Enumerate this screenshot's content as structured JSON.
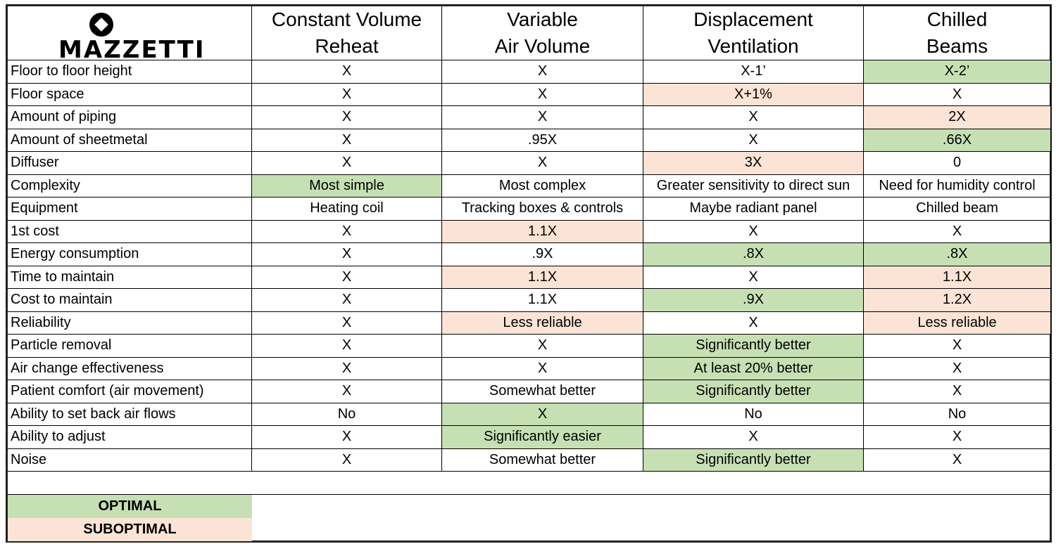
{
  "logo": "MAZZETTI",
  "columns": [
    [
      "Constant Volume",
      "Reheat"
    ],
    [
      "Variable",
      "Air Volume"
    ],
    [
      "Displacement",
      "Ventilation"
    ],
    [
      "Chilled",
      "Beams"
    ]
  ],
  "rows": [
    {
      "label": "Floor to floor height",
      "cells": [
        {
          "text": "X"
        },
        {
          "text": "X"
        },
        {
          "text": "X-1’"
        },
        {
          "text": "X-2’",
          "color": "#c6e0b4"
        }
      ]
    },
    {
      "label": "Floor space",
      "cells": [
        {
          "text": "X"
        },
        {
          "text": "X"
        },
        {
          "text": "X+1%",
          "color": "#fbe4d5"
        },
        {
          "text": "X"
        }
      ]
    },
    {
      "label": "Amount of piping",
      "cells": [
        {
          "text": "X"
        },
        {
          "text": "X"
        },
        {
          "text": "X"
        },
        {
          "text": "2X",
          "color": "#fbe4d5"
        }
      ]
    },
    {
      "label": "Amount of sheetmetal",
      "cells": [
        {
          "text": "X"
        },
        {
          "text": ".95X"
        },
        {
          "text": "X"
        },
        {
          "text": ".66X",
          "color": "#c6e0b4"
        }
      ]
    },
    {
      "label": "Diffuser",
      "cells": [
        {
          "text": "X"
        },
        {
          "text": "X"
        },
        {
          "text": "3X",
          "color": "#fbe4d5"
        },
        {
          "text": "0"
        }
      ]
    },
    {
      "label": "Complexity",
      "cells": [
        {
          "text": "Most simple",
          "color": "#c6e0b4"
        },
        {
          "text": "Most complex"
        },
        {
          "text": "Greater sensitivity to direct sun"
        },
        {
          "text": "Need for humidity control"
        }
      ]
    },
    {
      "label": "Equipment",
      "cells": [
        {
          "text": "Heating coil"
        },
        {
          "text": "Tracking boxes & controls"
        },
        {
          "text": "Maybe radiant panel"
        },
        {
          "text": "Chilled beam"
        }
      ]
    },
    {
      "label": "1st cost",
      "cells": [
        {
          "text": "X"
        },
        {
          "text": "1.1X",
          "color": "#fbe4d5"
        },
        {
          "text": "X"
        },
        {
          "text": "X"
        }
      ]
    },
    {
      "label": "Energy consumption",
      "cells": [
        {
          "text": "X"
        },
        {
          "text": ".9X"
        },
        {
          "text": ".8X",
          "color": "#c6e0b4"
        },
        {
          "text": ".8X",
          "color": "#c6e0b4"
        }
      ]
    },
    {
      "label": "Time to maintain",
      "cells": [
        {
          "text": "X"
        },
        {
          "text": "1.1X",
          "color": "#fbe4d5"
        },
        {
          "text": "X"
        },
        {
          "text": "1.1X",
          "color": "#fbe4d5"
        }
      ]
    },
    {
      "label": "Cost to maintain",
      "cells": [
        {
          "text": "X"
        },
        {
          "text": "1.1X"
        },
        {
          "text": ".9X",
          "color": "#c6e0b4"
        },
        {
          "text": "1.2X",
          "color": "#fbe4d5"
        }
      ]
    },
    {
      "label": "Reliability",
      "cells": [
        {
          "text": "X"
        },
        {
          "text": "Less reliable",
          "color": "#fbe4d5"
        },
        {
          "text": "X"
        },
        {
          "text": "Less reliable",
          "color": "#fbe4d5"
        }
      ]
    },
    {
      "label": "Particle removal",
      "cells": [
        {
          "text": "X"
        },
        {
          "text": "X"
        },
        {
          "text": "Significantly better",
          "color": "#c6e0b4"
        },
        {
          "text": "X"
        }
      ]
    },
    {
      "label": "Air change effectiveness",
      "cells": [
        {
          "text": "X"
        },
        {
          "text": "X"
        },
        {
          "text": "At least 20% better",
          "color": "#c6e0b4"
        },
        {
          "text": "X"
        }
      ]
    },
    {
      "label": "Patient comfort (air movement)",
      "cells": [
        {
          "text": "X"
        },
        {
          "text": "Somewhat better"
        },
        {
          "text": "Significantly better",
          "color": "#c6e0b4"
        },
        {
          "text": "X"
        }
      ]
    },
    {
      "label": "Ability to set back air flows",
      "cells": [
        {
          "text": "No"
        },
        {
          "text": "X",
          "color": "#c6e0b4"
        },
        {
          "text": "No"
        },
        {
          "text": "No"
        }
      ]
    },
    {
      "label": "Ability to adjust",
      "cells": [
        {
          "text": "X"
        },
        {
          "text": "Significantly easier",
          "color": "#c6e0b4"
        },
        {
          "text": "X"
        },
        {
          "text": "X"
        }
      ]
    },
    {
      "label": "Noise",
      "cells": [
        {
          "text": "X"
        },
        {
          "text": "Somewhat better"
        },
        {
          "text": "Significantly better",
          "color": "#c6e0b4"
        },
        {
          "text": "X"
        }
      ]
    }
  ],
  "legend": [
    {
      "label": "OPTIMAL",
      "color": "#c6e0b4"
    },
    {
      "label": "SUBOPTIMAL",
      "color": "#fbe4d5"
    }
  ]
}
